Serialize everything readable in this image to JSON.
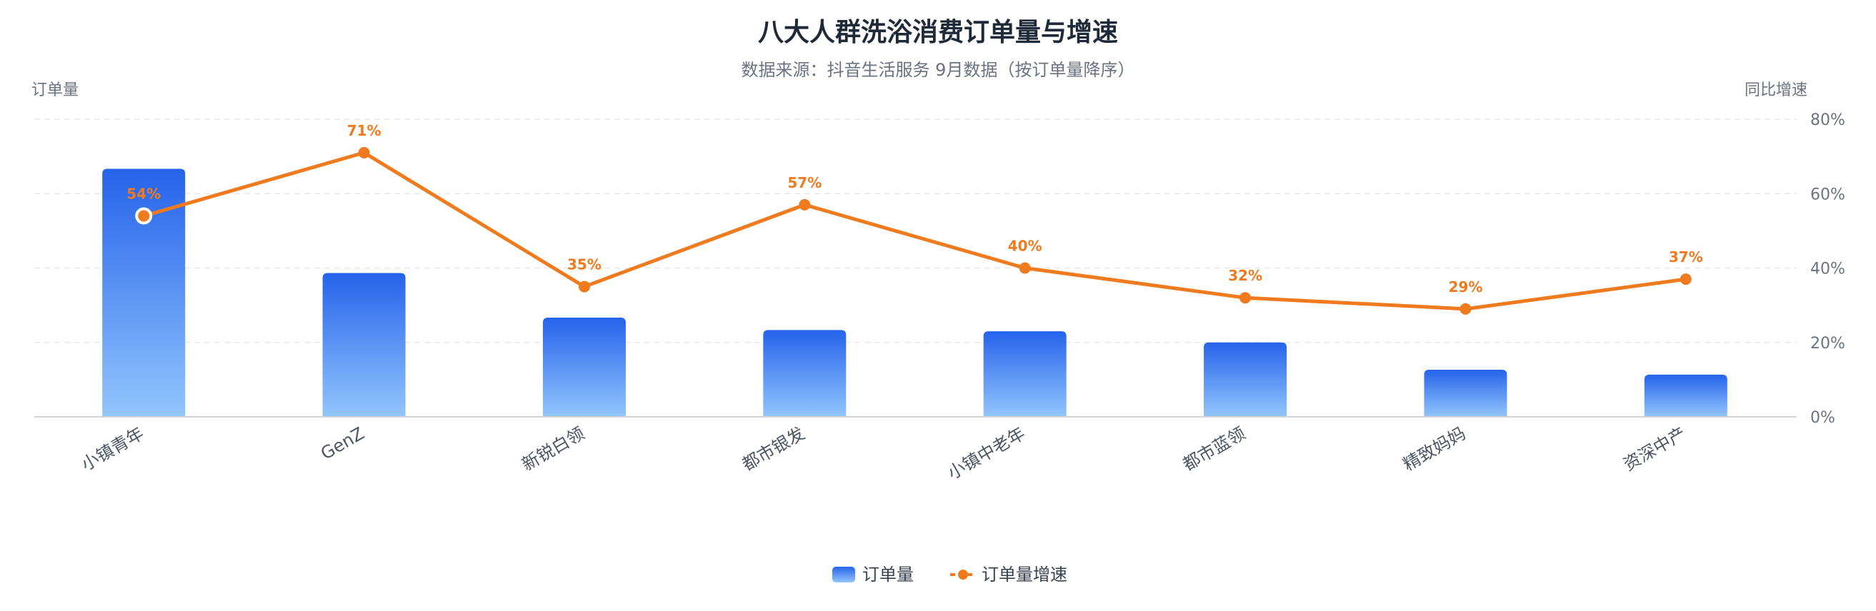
{
  "chart_data": {
    "type": "bar",
    "title": "八大人群洗浴消费订单量与增速",
    "subtitle": "数据来源：抖音生活服务 9月数据（按订单量降序）",
    "y_left_label": "订单量",
    "y_right_label": "同比增速",
    "categories": [
      "小镇青年",
      "GenZ",
      "新锐白领",
      "都市银发",
      "小镇中老年",
      "都市蓝领",
      "精致妈妈",
      "资深中产"
    ],
    "series": [
      {
        "name": "订单量",
        "type": "bar",
        "axis": "left",
        "values": [
          100,
          58,
          40,
          35,
          34.5,
          30,
          19,
          17
        ]
      },
      {
        "name": "订单量增速",
        "type": "line",
        "axis": "right",
        "values": [
          54,
          71,
          35,
          57,
          40,
          32,
          29,
          37
        ],
        "labels": [
          "54%",
          "71%",
          "35%",
          "57%",
          "40%",
          "32%",
          "29%",
          "37%"
        ]
      }
    ],
    "y_left_range": [
      0,
      120
    ],
    "y_right_range": [
      0,
      80
    ],
    "y_right_ticks": [
      "0%",
      "20%",
      "40%",
      "60%",
      "80%"
    ],
    "grid": true,
    "legend_position": "bottom-center",
    "colors": {
      "bar_top": "#2563eb",
      "bar_bottom": "#93c5fd",
      "line": "#f07a1e"
    }
  }
}
